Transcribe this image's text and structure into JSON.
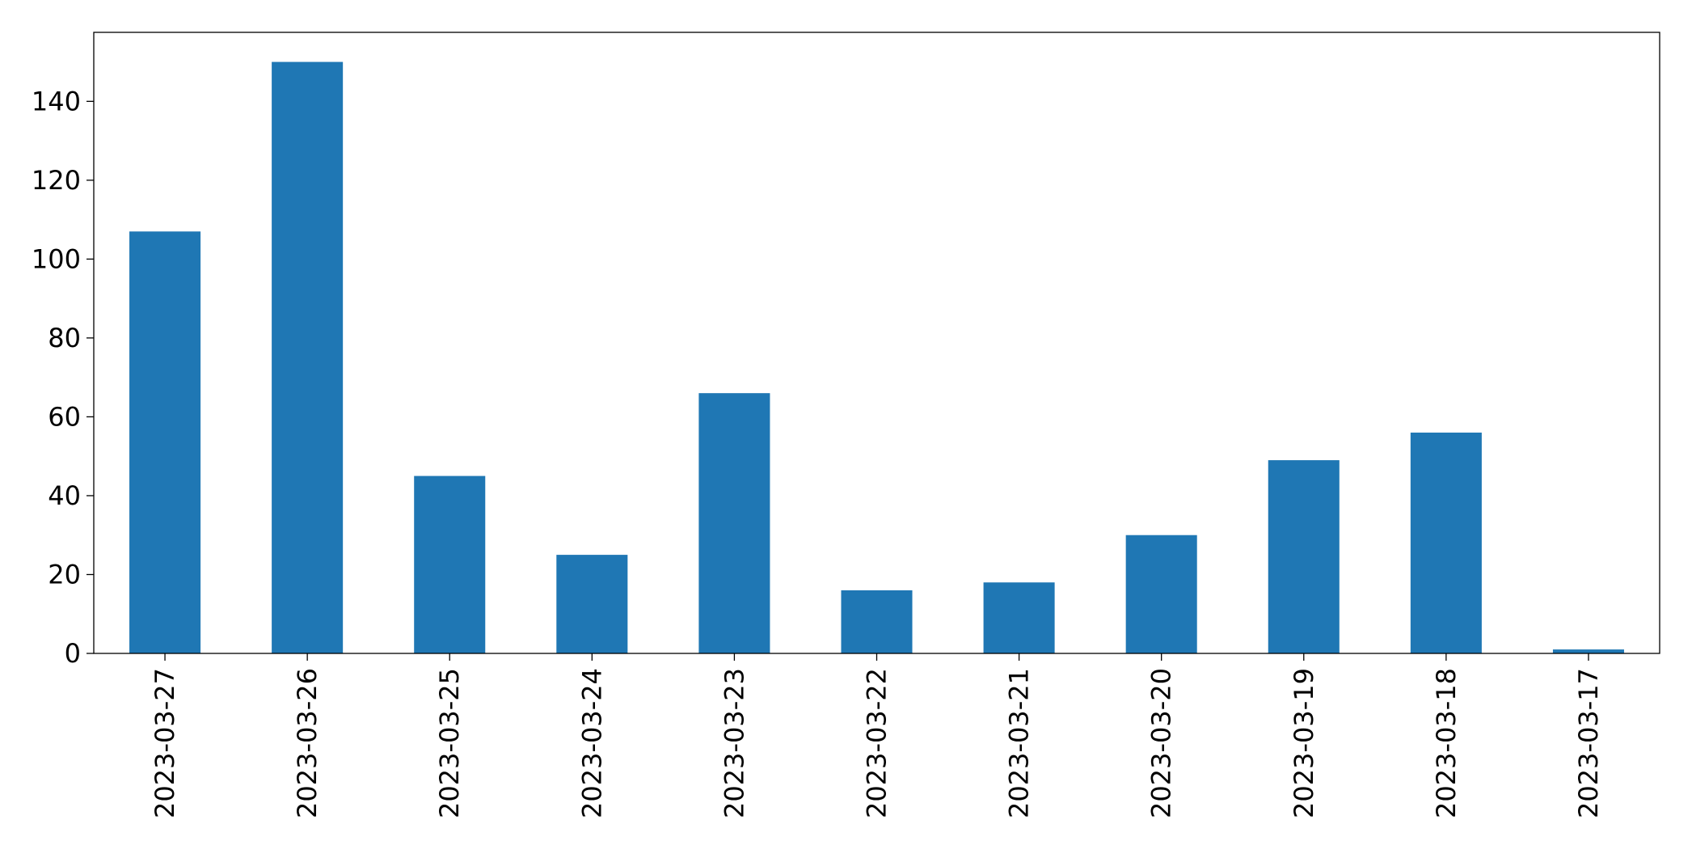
{
  "chart_data": {
    "type": "bar",
    "categories": [
      "2023-03-27",
      "2023-03-26",
      "2023-03-25",
      "2023-03-24",
      "2023-03-23",
      "2023-03-22",
      "2023-03-21",
      "2023-03-20",
      "2023-03-19",
      "2023-03-18",
      "2023-03-17"
    ],
    "values": [
      107,
      150,
      45,
      25,
      66,
      16,
      18,
      30,
      49,
      56,
      1
    ],
    "color": "#1f77b4",
    "ylim": [
      0,
      157.5
    ],
    "yticks": [
      0,
      20,
      40,
      60,
      80,
      100,
      120,
      140
    ],
    "grid": false
  }
}
